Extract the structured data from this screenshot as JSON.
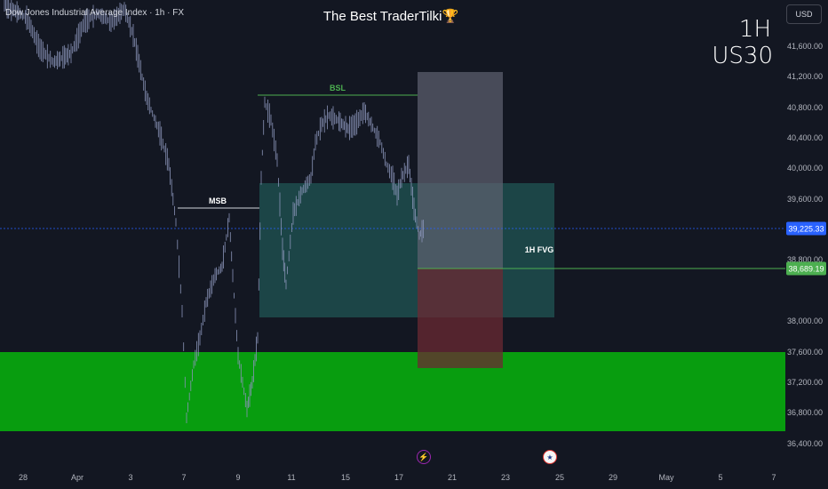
{
  "header": {
    "symbol_title": "Dow Jones Industrial Average Index · 1h · FX",
    "brand_title": "The Best TraderTilki",
    "brand_icon": "trophy-icon",
    "timeframe": "1H",
    "instrument": "US30",
    "currency": "USD"
  },
  "price_axis": {
    "ticks": [
      "41,600.00",
      "41,200.00",
      "40,800.00",
      "40,400.00",
      "40,000.00",
      "39,600.00",
      "38,800.00",
      "38,000.00",
      "37,600.00",
      "37,200.00",
      "36,800.00",
      "36,400.00"
    ],
    "current_price": "39,225.33",
    "fvg_line_price": "38,689.19",
    "current_price_color": "#2962ff",
    "fvg_line_color": "#4caf50"
  },
  "time_axis": {
    "ticks": [
      "28",
      "Apr",
      "3",
      "7",
      "9",
      "11",
      "15",
      "17",
      "21",
      "23",
      "25",
      "29",
      "May",
      "5",
      "7"
    ]
  },
  "annotations": {
    "msb_label": "MSB",
    "bsl_label": "BSL",
    "fvg_label": "1H FVG",
    "event_icons": [
      "lightning-icon",
      "us-flag-icon"
    ]
  },
  "colors": {
    "background": "#131722",
    "demand_zone": "#089d0f",
    "fvg_zone": "#1f4d4d",
    "candle": "#8a94b8",
    "bsl_line": "#4caf50"
  }
}
